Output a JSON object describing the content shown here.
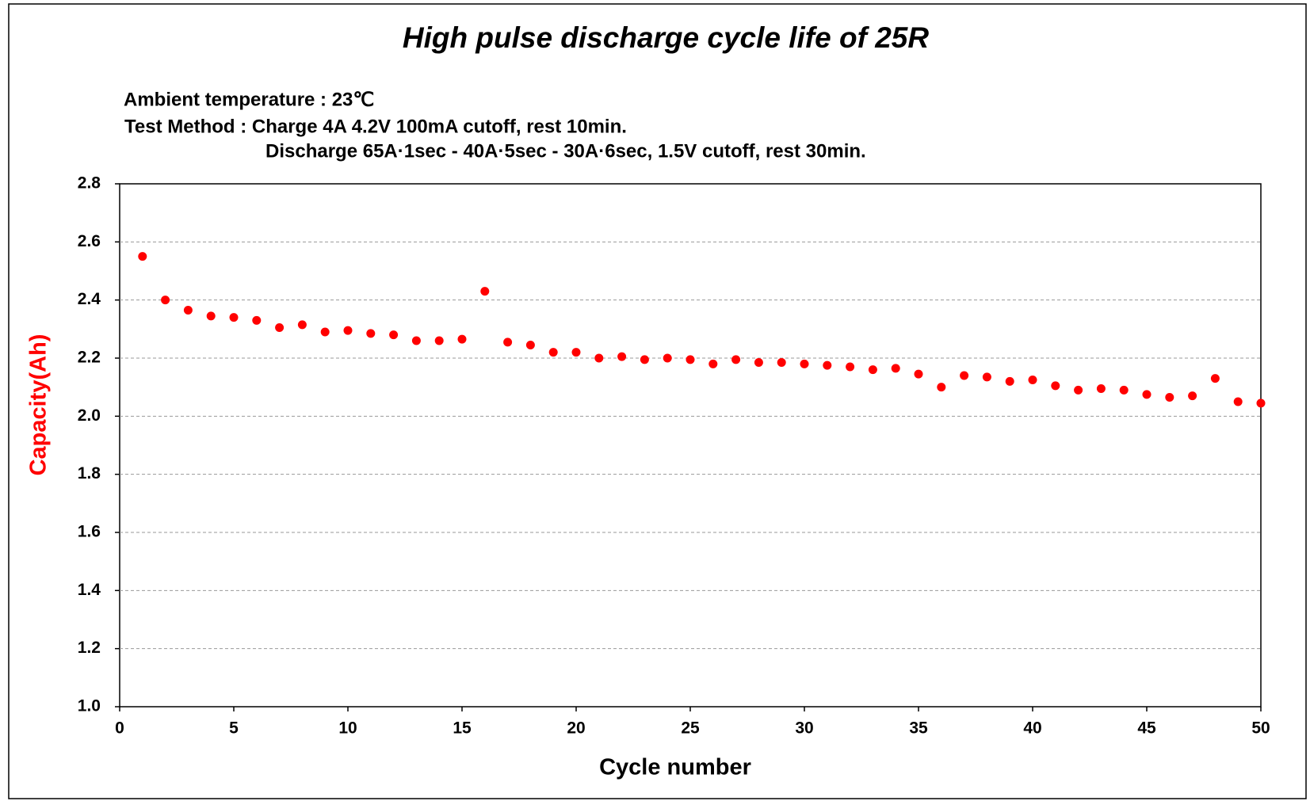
{
  "chart_data": {
    "type": "scatter",
    "title": "High pulse discharge cycle life of 25R",
    "annotations": [
      "Ambient temperature : 23℃",
      "Test Method : Charge  4A 4.2V 100mA cutoff, rest 10min.",
      "Discharge  65A·1sec - 40A·5sec - 30A·6sec, 1.5V cutoff, rest 30min."
    ],
    "x_label": "Cycle number",
    "y_label": "Capacity(Ah)",
    "x": [
      1,
      2,
      3,
      4,
      5,
      6,
      7,
      8,
      9,
      10,
      11,
      12,
      13,
      14,
      15,
      16,
      17,
      18,
      19,
      20,
      21,
      22,
      23,
      24,
      25,
      26,
      27,
      28,
      29,
      30,
      31,
      32,
      33,
      34,
      35,
      36,
      37,
      38,
      39,
      40,
      41,
      42,
      43,
      44,
      45,
      46,
      47,
      48,
      49,
      50
    ],
    "values": [
      2.55,
      2.4,
      2.365,
      2.345,
      2.34,
      2.33,
      2.305,
      2.315,
      2.29,
      2.295,
      2.285,
      2.28,
      2.26,
      2.26,
      2.265,
      2.43,
      2.255,
      2.245,
      2.22,
      2.22,
      2.2,
      2.205,
      2.195,
      2.2,
      2.195,
      2.18,
      2.195,
      2.185,
      2.185,
      2.18,
      2.175,
      2.17,
      2.16,
      2.165,
      2.145,
      2.1,
      2.14,
      2.135,
      2.12,
      2.125,
      2.105,
      2.09,
      2.095,
      2.09,
      2.075,
      2.065,
      2.07,
      2.13,
      2.05,
      2.045
    ],
    "color": "#ff0000",
    "xlim": [
      0,
      50
    ],
    "xticks": [
      0,
      5,
      10,
      15,
      20,
      25,
      30,
      35,
      40,
      45,
      50
    ],
    "ylim": [
      1.0,
      2.8
    ],
    "yticks": [
      {
        "value": 1.0,
        "label": "1.0"
      },
      1.2,
      1.4,
      1.6,
      1.8,
      {
        "value": 2.0,
        "label": "2.0"
      },
      2.2,
      2.4,
      2.6,
      2.8
    ],
    "grid": true
  }
}
